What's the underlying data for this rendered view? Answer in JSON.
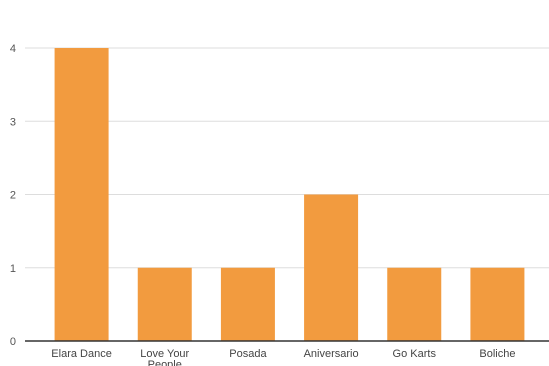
{
  "chart_data": {
    "type": "bar",
    "title": "",
    "xlabel": "",
    "ylabel": "",
    "categories": [
      "Elara Dance",
      "Love Your People",
      "Posada",
      "Aniversario",
      "Go Karts",
      "Boliche"
    ],
    "values": [
      4,
      1,
      1,
      2,
      1,
      1
    ],
    "ylim": [
      0,
      4
    ],
    "yticks": [
      0,
      1,
      2,
      3,
      4
    ],
    "grid": true,
    "legend": "none",
    "bar_color": "#F29B3F",
    "grid_color": "#DDDDDD",
    "axis_color": "#333333"
  }
}
